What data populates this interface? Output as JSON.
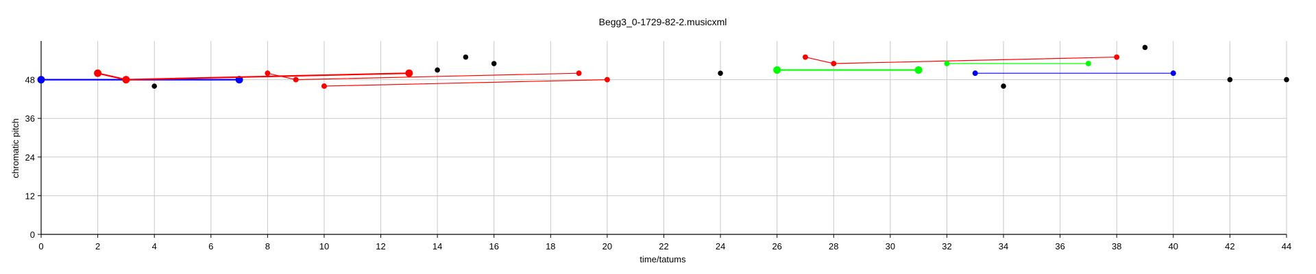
{
  "chart_data": {
    "type": "scatter",
    "title": "Begg3_0-1729-82-2.musicxml",
    "xlabel": "time/tatums",
    "ylabel": "chromatic pitch",
    "xlim": [
      0,
      44
    ],
    "ylim": [
      0,
      60
    ],
    "xticks": [
      0,
      2,
      4,
      6,
      8,
      10,
      12,
      14,
      16,
      18,
      20,
      22,
      24,
      26,
      28,
      30,
      32,
      34,
      36,
      38,
      40,
      42,
      44
    ],
    "yticks": [
      0,
      12,
      24,
      36,
      48
    ],
    "grid": true,
    "colors": {
      "black": "#000000",
      "red": "#ff0000",
      "blue": "#0000ff",
      "green": "#00ff00"
    },
    "points": [
      {
        "x": 4,
        "y": 46,
        "color": "black"
      },
      {
        "x": 14,
        "y": 51,
        "color": "black"
      },
      {
        "x": 15,
        "y": 55,
        "color": "black"
      },
      {
        "x": 16,
        "y": 53,
        "color": "black"
      },
      {
        "x": 24,
        "y": 50,
        "color": "black"
      },
      {
        "x": 34,
        "y": 46,
        "color": "black"
      },
      {
        "x": 39,
        "y": 58,
        "color": "black"
      },
      {
        "x": 42,
        "y": 48,
        "color": "black"
      },
      {
        "x": 44,
        "y": 48,
        "color": "black"
      }
    ],
    "series": [
      {
        "color": "blue",
        "size": "large",
        "x": [
          0,
          7
        ],
        "y": [
          48,
          48
        ]
      },
      {
        "color": "red",
        "size": "large",
        "x": [
          2,
          3,
          13
        ],
        "y": [
          50,
          48,
          50
        ]
      },
      {
        "color": "red",
        "size": "small",
        "x": [
          8,
          9,
          19
        ],
        "y": [
          50,
          48,
          50
        ]
      },
      {
        "color": "red",
        "size": "small",
        "x": [
          10,
          20
        ],
        "y": [
          46,
          48
        ]
      },
      {
        "color": "green",
        "size": "large",
        "x": [
          26,
          31
        ],
        "y": [
          51,
          51
        ]
      },
      {
        "color": "red",
        "size": "small",
        "x": [
          27,
          28,
          38
        ],
        "y": [
          55,
          53,
          55
        ]
      },
      {
        "color": "green",
        "size": "small",
        "x": [
          32,
          37
        ],
        "y": [
          53,
          53
        ]
      },
      {
        "color": "blue",
        "size": "small",
        "x": [
          33,
          40
        ],
        "y": [
          50,
          50
        ]
      }
    ]
  }
}
